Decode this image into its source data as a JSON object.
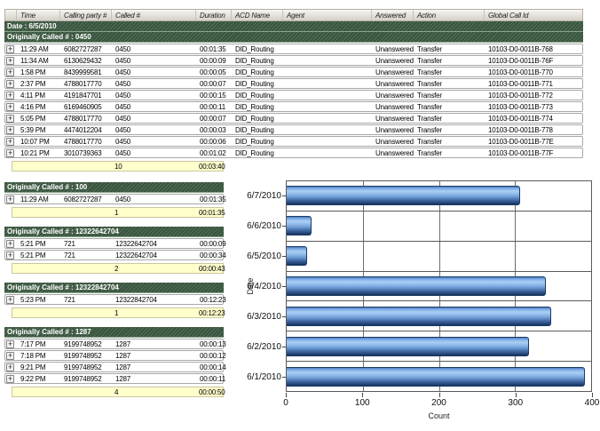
{
  "table": {
    "columns": [
      "",
      "Time",
      "Calling party #",
      "Called #",
      "Duration",
      "ACD Name",
      "Agent",
      "Answered",
      "Action",
      "Global Call Id"
    ],
    "date_band": "Date : 6/5/2010",
    "expand_icon": "+",
    "groups": [
      {
        "label": "Originally Called # : 0450",
        "rows": [
          {
            "time": "11:29 AM",
            "calling": "6082727287",
            "called": "0450",
            "duration": "00:01:35",
            "acd": "DID_Routing",
            "agent": "",
            "answered": "Unanswered",
            "action": "Transfer",
            "gcid": "10103-D0-0011B-768"
          },
          {
            "time": "11:34 AM",
            "calling": "6130629432",
            "called": "0450",
            "duration": "00:00:09",
            "acd": "DID_Routing",
            "agent": "",
            "answered": "Unanswered",
            "action": "Transfer",
            "gcid": "10103-D0-0011B-76F"
          },
          {
            "time": "1:58 PM",
            "calling": "8439999581",
            "called": "0450",
            "duration": "00:00:05",
            "acd": "DID_Routing",
            "agent": "",
            "answered": "Unanswered",
            "action": "Transfer",
            "gcid": "10103-D0-0011B-770"
          },
          {
            "time": "2:37 PM",
            "calling": "4788017770",
            "called": "0450",
            "duration": "00:00:07",
            "acd": "DID_Routing",
            "agent": "",
            "answered": "Unanswered",
            "action": "Transfer",
            "gcid": "10103-D0-0011B-771"
          },
          {
            "time": "4:11 PM",
            "calling": "4191847701",
            "called": "0450",
            "duration": "00:00:15",
            "acd": "DID_Routing",
            "agent": "",
            "answered": "Unanswered",
            "action": "Transfer",
            "gcid": "10103-D0-0011B-772"
          },
          {
            "time": "4:16 PM",
            "calling": "6169460905",
            "called": "0450",
            "duration": "00:00:11",
            "acd": "DID_Routing",
            "agent": "",
            "answered": "Unanswered",
            "action": "Transfer",
            "gcid": "10103-D0-0011B-773"
          },
          {
            "time": "5:05 PM",
            "calling": "4788017770",
            "called": "0450",
            "duration": "00:00:07",
            "acd": "DID_Routing",
            "agent": "",
            "answered": "Unanswered",
            "action": "Transfer",
            "gcid": "10103-D0-0011B-774"
          },
          {
            "time": "5:39 PM",
            "calling": "4474012204",
            "called": "0450",
            "duration": "00:00:03",
            "acd": "DID_Routing",
            "agent": "",
            "answered": "Unanswered",
            "action": "Transfer",
            "gcid": "10103-D0-0011B-778"
          },
          {
            "time": "10:07 PM",
            "calling": "4788017770",
            "called": "0450",
            "duration": "00:00:06",
            "acd": "DID_Routing",
            "agent": "",
            "answered": "Unanswered",
            "action": "Transfer",
            "gcid": "10103-D0-0011B-77E"
          },
          {
            "time": "10:21 PM",
            "calling": "3010739363",
            "called": "0450",
            "duration": "00:01:02",
            "acd": "DID_Routing",
            "agent": "",
            "answered": "Unanswered",
            "action": "Transfer",
            "gcid": "10103-D0-0011B-77F"
          }
        ],
        "summary": {
          "count": "10",
          "duration": "00:03:40"
        }
      },
      {
        "label": "Originally Called # : 100",
        "rows": [
          {
            "time": "11:29 AM",
            "calling": "6082727287",
            "called": "0450",
            "duration": "00:01:35"
          }
        ],
        "summary": {
          "count": "1",
          "duration": "00:01:35"
        }
      },
      {
        "label": "Originally Called # : 12322642704",
        "rows": [
          {
            "time": "5:21 PM",
            "calling": "721",
            "called": "12322642704",
            "duration": "00:00:09"
          },
          {
            "time": "5:21 PM",
            "calling": "721",
            "called": "12322642704",
            "duration": "00:00:34"
          }
        ],
        "summary": {
          "count": "2",
          "duration": "00:00:43"
        }
      },
      {
        "label": "Originally Called # : 12322842704",
        "rows": [
          {
            "time": "5:23 PM",
            "calling": "721",
            "called": "12322842704",
            "duration": "00:12:23"
          }
        ],
        "summary": {
          "count": "1",
          "duration": "00:12:23"
        }
      },
      {
        "label": "Originally Called # : 1287",
        "rows": [
          {
            "time": "7:17 PM",
            "calling": "9199748952",
            "called": "1287",
            "duration": "00:00:13"
          },
          {
            "time": "7:18 PM",
            "calling": "9199748952",
            "called": "1287",
            "duration": "00:00:12"
          },
          {
            "time": "9:21 PM",
            "calling": "9199748952",
            "called": "1287",
            "duration": "00:00:14"
          },
          {
            "time": "9:22 PM",
            "calling": "9199748952",
            "called": "1287",
            "duration": "00:00:11"
          }
        ],
        "summary": {
          "count": "4",
          "duration": "00:00:50"
        }
      }
    ]
  },
  "chart_data": {
    "type": "bar",
    "orientation": "horizontal",
    "title": "",
    "categories": [
      "6/7/2010",
      "6/6/2010",
      "6/5/2010",
      "6/4/2010",
      "6/3/2010",
      "6/2/2010",
      "6/1/2010"
    ],
    "values": [
      307,
      33,
      27,
      340,
      348,
      318,
      392
    ],
    "xlabel": "Count",
    "ylabel": "Date",
    "xlim": [
      0,
      400
    ],
    "xticks": [
      0,
      100,
      200,
      300,
      400
    ],
    "grid": true,
    "legend": "none",
    "bar_color": "#6f9fd8"
  },
  "colors": {
    "group_band_green": "#3f5e45",
    "summary_yellow": "#ffffcc",
    "bar_blue": "#6f9fd8",
    "header_gray": "#d9d5cd"
  }
}
